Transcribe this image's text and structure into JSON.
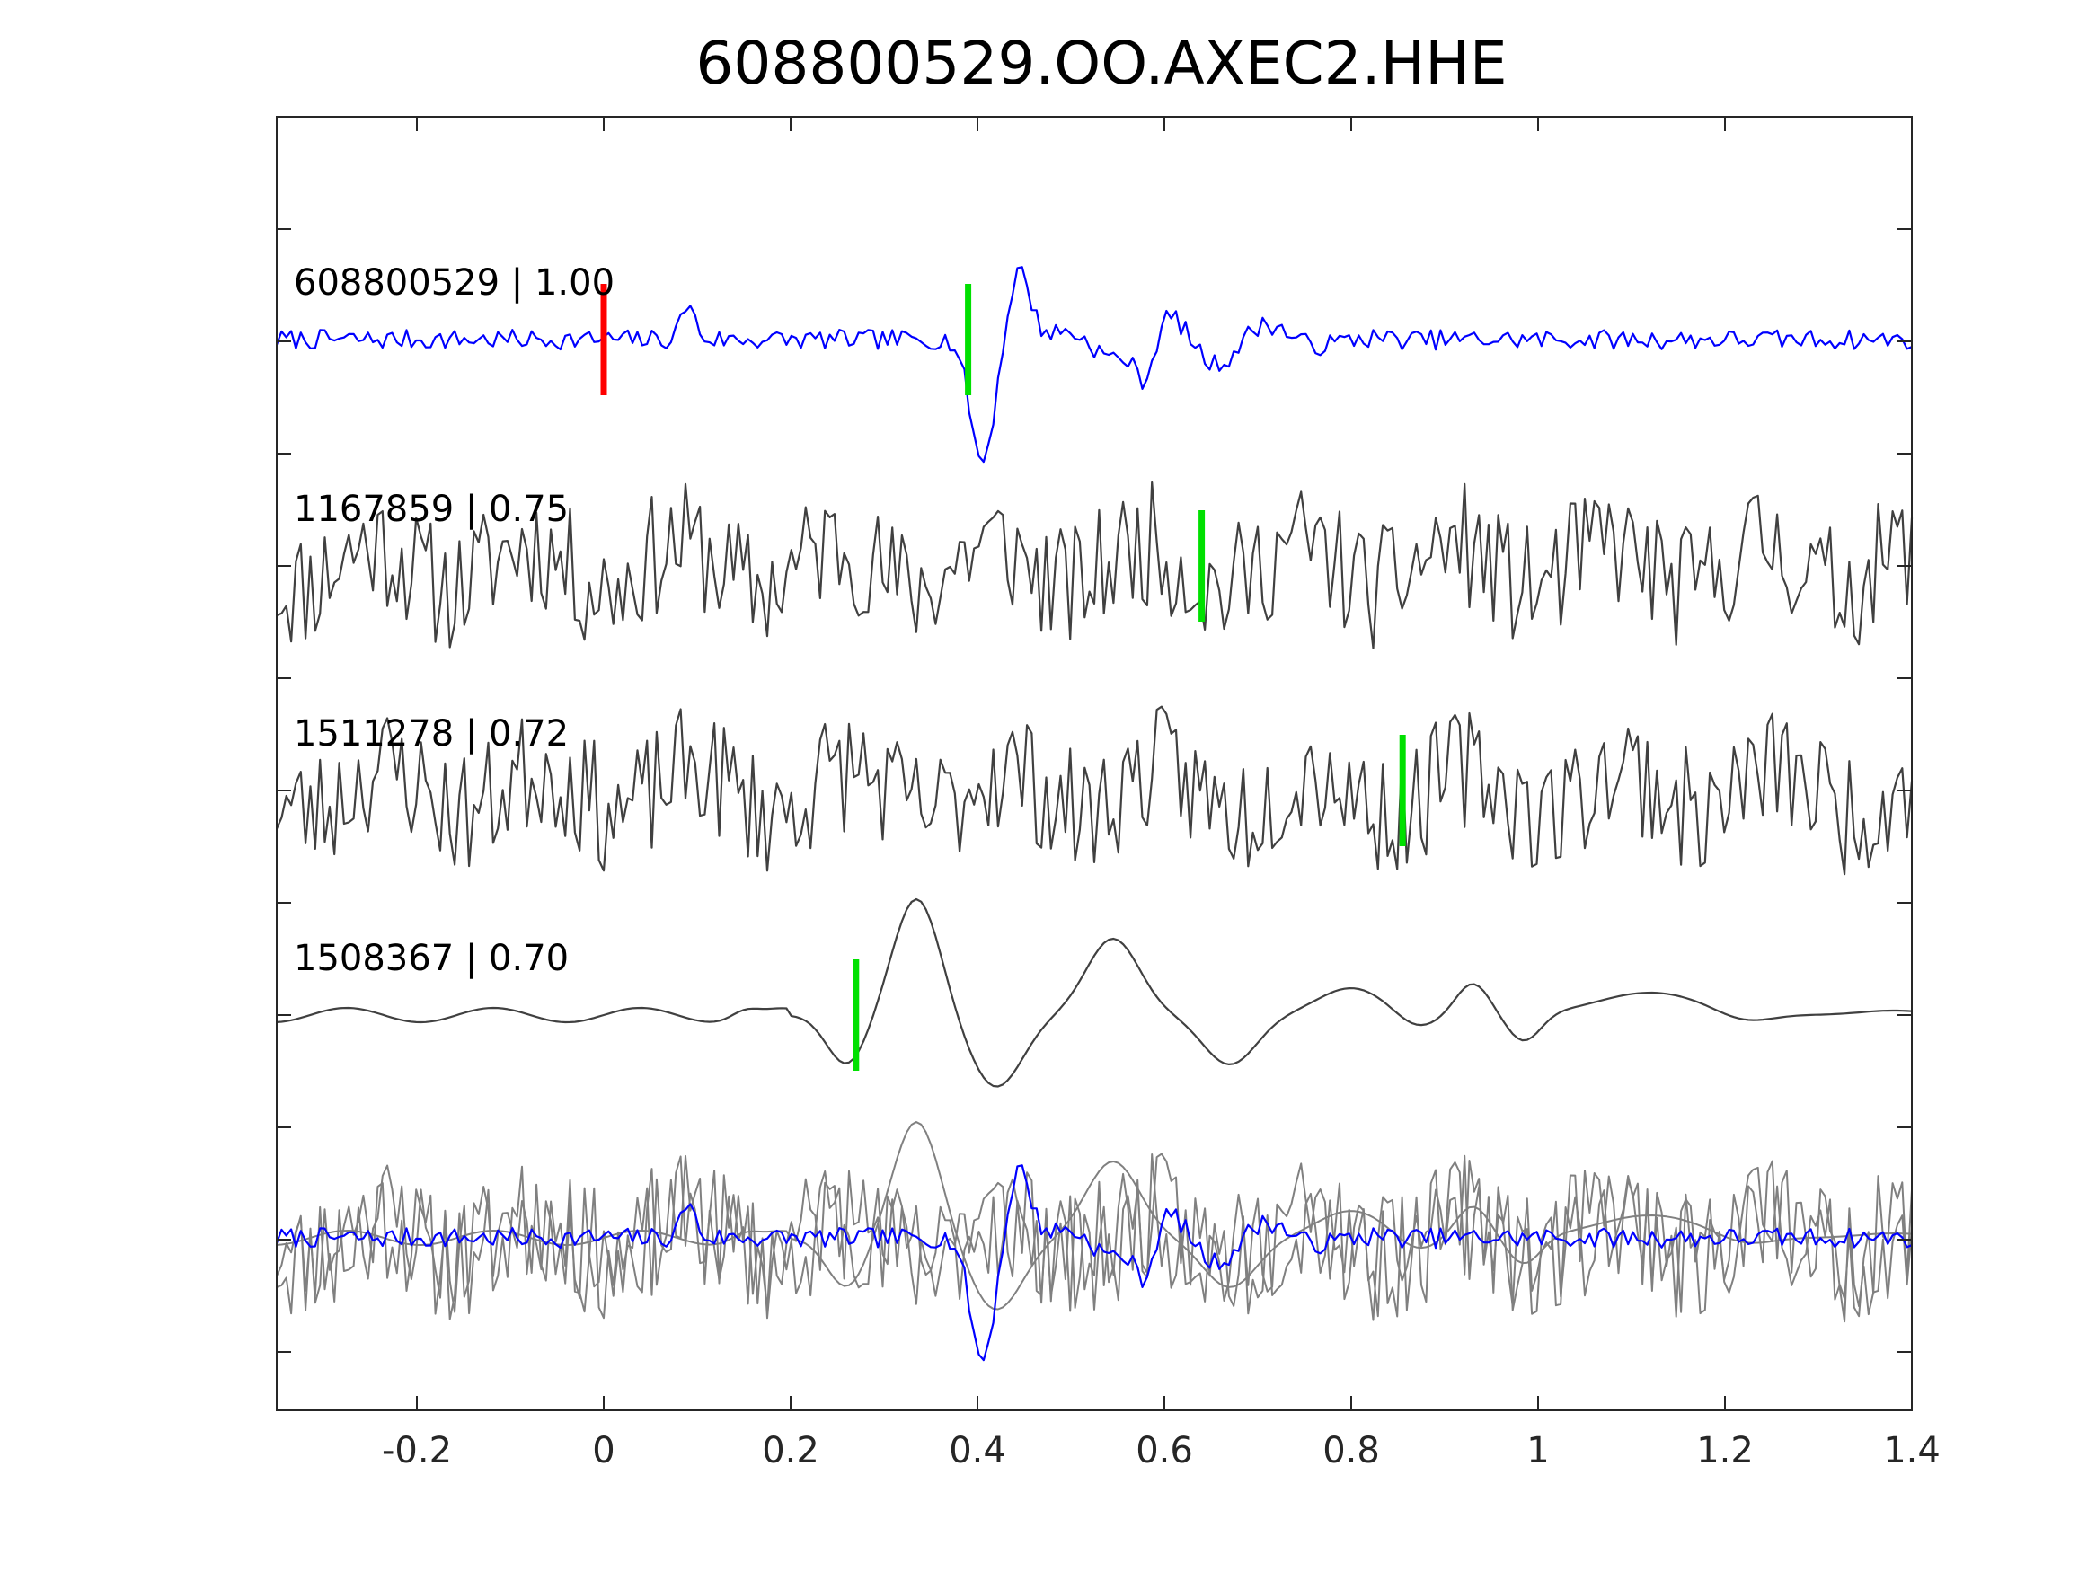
{
  "chart_data": {
    "type": "line",
    "title": "608800529.OO.AXEC2.HHE",
    "xlabel": "",
    "ylabel": "",
    "xlim": [
      -0.35,
      1.4
    ],
    "xticks": [
      -0.2,
      0,
      0.2,
      0.4,
      0.6,
      0.8,
      1,
      1.2,
      1.4
    ],
    "xtick_labels": [
      "-0.2",
      "0",
      "0.2",
      "0.4",
      "0.6",
      "0.8",
      "1",
      "1.2",
      "1.4"
    ],
    "ytick_count": 12,
    "grid": false,
    "traces": [
      {
        "label": "608800529 | 1.00",
        "id": "608800529",
        "correlation": 1.0,
        "color": "#0000ff",
        "pick_time": 0.39,
        "pick_color": "#00e000",
        "reference_pick_time": 0.0,
        "reference_pick_color": "#ff0000"
      },
      {
        "label": "1167859 | 0.75",
        "id": "1167859",
        "correlation": 0.75,
        "color": "#404040",
        "pick_time": 0.64,
        "pick_color": "#00e000"
      },
      {
        "label": "1511278 | 0.72",
        "id": "1511278",
        "correlation": 0.72,
        "color": "#404040",
        "pick_time": 0.855,
        "pick_color": "#00e000"
      },
      {
        "label": "1508367 | 0.70",
        "id": "1508367",
        "correlation": 0.7,
        "color": "#404040",
        "pick_time": 0.27,
        "pick_color": "#00e000"
      }
    ],
    "stack": {
      "colors": [
        "#808080",
        "#0000ff"
      ],
      "note_ref": "overlay of all aligned traces"
    }
  }
}
